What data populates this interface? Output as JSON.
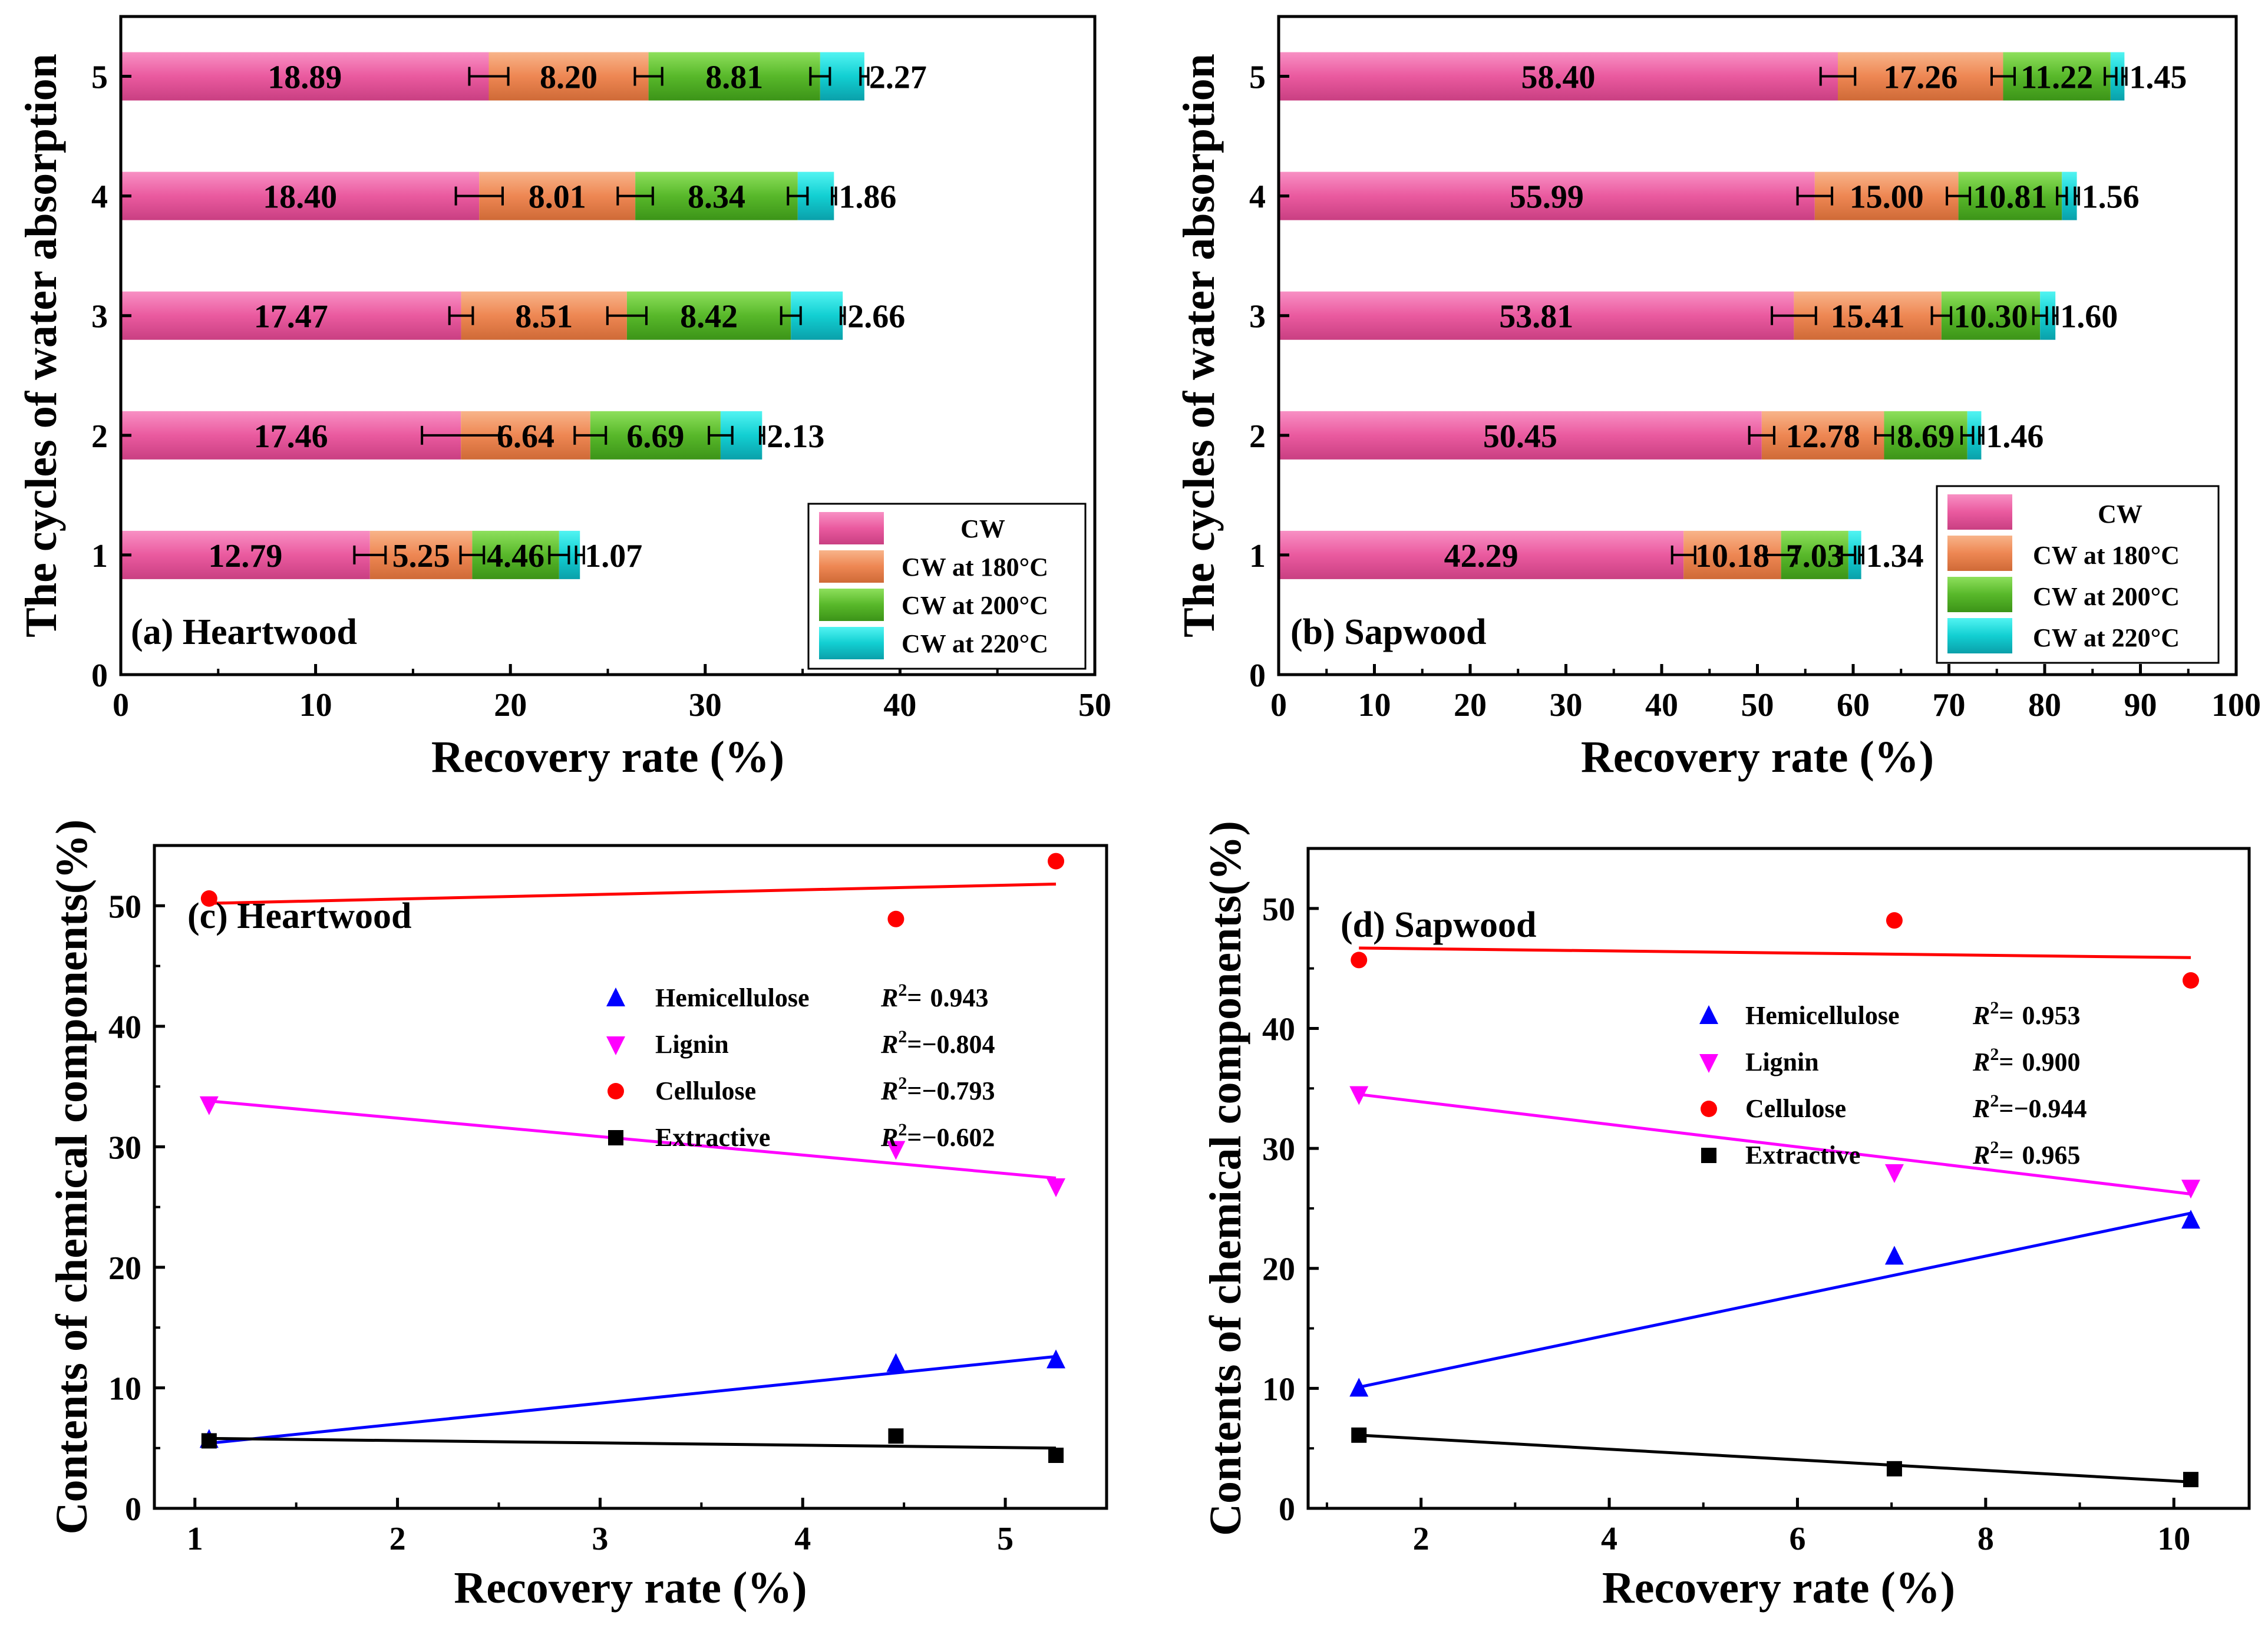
{
  "chart_data": [
    {
      "id": "a",
      "type": "bar",
      "orientation": "horizontal",
      "stacked": true,
      "panel_label": "(a) Heartwood",
      "xlabel": "Recovery rate (%)",
      "ylabel": "The cycles of water absorption",
      "xlim": [
        0,
        50
      ],
      "xticks": [
        "0",
        "10",
        "20",
        "30",
        "40",
        "50"
      ],
      "ylim": [
        0,
        5.5
      ],
      "yticks": [
        "0",
        "1",
        "2",
        "3",
        "4",
        "5"
      ],
      "categories": [
        "1",
        "2",
        "3",
        "4",
        "5"
      ],
      "series": [
        {
          "name": "CW",
          "values": [
            12.79,
            17.46,
            17.47,
            18.4,
            18.89
          ],
          "labels": [
            "12.79",
            "17.46",
            "17.47",
            "18.40",
            "18.89"
          ],
          "errors": [
            0.8,
            2.0,
            0.6,
            1.2,
            1.0
          ]
        },
        {
          "name": "CW at 180°C",
          "values": [
            5.25,
            6.64,
            8.51,
            8.01,
            8.2
          ],
          "labels": [
            "5.25",
            "6.64",
            "8.51",
            "8.01",
            "8.20"
          ],
          "errors": [
            0.6,
            0.8,
            1.0,
            0.9,
            0.7
          ]
        },
        {
          "name": "CW at 200°C",
          "values": [
            4.46,
            6.69,
            8.42,
            8.34,
            8.81
          ],
          "labels": [
            "4.46",
            "6.69",
            "8.42",
            "8.34",
            "8.81"
          ],
          "errors": [
            0.5,
            0.6,
            0.5,
            0.5,
            0.5
          ]
        },
        {
          "name": "CW at 220°C",
          "values": [
            1.07,
            2.13,
            2.66,
            1.86,
            2.27
          ],
          "labels": [
            "1.07",
            "2.13",
            "2.66",
            "1.86",
            "2.27"
          ],
          "errors": [
            0.2,
            0.1,
            0.1,
            0.1,
            0.2
          ]
        }
      ],
      "legend": [
        "CW",
        "CW at 180°C",
        "CW at 200°C",
        "CW at 220°C"
      ]
    },
    {
      "id": "b",
      "type": "bar",
      "orientation": "horizontal",
      "stacked": true,
      "panel_label": "(b) Sapwood",
      "xlabel": "Recovery rate (%)",
      "ylabel": "The cycles of water absorption",
      "xlim": [
        0,
        100
      ],
      "xticks": [
        "0",
        "10",
        "20",
        "30",
        "40",
        "50",
        "60",
        "70",
        "80",
        "90",
        "100"
      ],
      "ylim": [
        0,
        5.5
      ],
      "yticks": [
        "0",
        "1",
        "2",
        "3",
        "4",
        "5"
      ],
      "categories": [
        "1",
        "2",
        "3",
        "4",
        "5"
      ],
      "series": [
        {
          "name": "CW",
          "values": [
            42.29,
            50.45,
            53.81,
            55.99,
            58.4
          ],
          "labels": [
            "42.29",
            "50.45",
            "53.81",
            "55.99",
            "58.40"
          ],
          "errors": [
            1.2,
            1.3,
            2.3,
            1.8,
            1.8
          ]
        },
        {
          "name": "CW at 180°C",
          "values": [
            10.18,
            12.78,
            15.41,
            15.0,
            17.26
          ],
          "labels": [
            "10.18",
            "12.78",
            "15.41",
            "15.00",
            "17.26"
          ],
          "errors": [
            1.6,
            0.9,
            1.0,
            1.2,
            1.2
          ]
        },
        {
          "name": "CW at 200°C",
          "values": [
            7.03,
            8.69,
            10.3,
            10.81,
            11.22
          ],
          "labels": [
            "7.03",
            "8.69",
            "10.30",
            "10.81",
            "11.22"
          ],
          "errors": [
            0.7,
            0.6,
            0.7,
            0.5,
            0.6
          ]
        },
        {
          "name": "CW at 220°C",
          "values": [
            1.34,
            1.46,
            1.6,
            1.56,
            1.45
          ],
          "labels": [
            "1.34",
            "1.46",
            "1.60",
            "1.56",
            "1.45"
          ],
          "errors": [
            0.2,
            0.2,
            0.2,
            0.2,
            0.2
          ]
        }
      ],
      "legend": [
        "CW",
        "CW at 180°C",
        "CW at 200°C",
        "CW at 220°C"
      ]
    },
    {
      "id": "c",
      "type": "scatter",
      "panel_label": "(c) Heartwood",
      "xlabel": "Recovery rate (%)",
      "ylabel": "Contents of chemical components(%)",
      "xlim": [
        0.8,
        5.5
      ],
      "xticks": [
        1,
        2,
        3,
        4,
        5
      ],
      "ylim": [
        0,
        55
      ],
      "yticks": [
        0,
        10,
        20,
        30,
        40,
        50
      ],
      "series": [
        {
          "name": "Hemicellulose",
          "marker": "triangle-up",
          "color": "#0000ff",
          "x": [
            1.07,
            4.46,
            5.25
          ],
          "y": [
            5.7,
            12.0,
            12.3
          ],
          "fit": [
            [
              1.07,
              5.4
            ],
            [
              5.25,
              12.6
            ]
          ],
          "r2_label": "R",
          "r2_value": "0.943"
        },
        {
          "name": "Lignin",
          "marker": "triangle-down",
          "color": "#ff00ff",
          "x": [
            1.07,
            4.46,
            5.25
          ],
          "y": [
            33.5,
            29.8,
            26.7
          ],
          "fit": [
            [
              1.07,
              33.8
            ],
            [
              5.25,
              27.4
            ]
          ],
          "r2_label": "R",
          "r2_value": "−0.804"
        },
        {
          "name": "Cellulose",
          "marker": "circle",
          "color": "#ff0000",
          "x": [
            1.07,
            4.46,
            5.25
          ],
          "y": [
            50.6,
            48.9,
            53.7
          ],
          "fit": [
            [
              1.07,
              50.2
            ],
            [
              5.25,
              51.8
            ]
          ],
          "r2_label": "R",
          "r2_value": "−0.793"
        },
        {
          "name": "Extractive",
          "marker": "square",
          "color": "#000000",
          "x": [
            1.07,
            4.46,
            5.25
          ],
          "y": [
            5.6,
            6.0,
            4.4
          ],
          "fit": [
            [
              1.07,
              5.8
            ],
            [
              5.25,
              5.0
            ]
          ],
          "r2_label": "R",
          "r2_value": "−0.602"
        }
      ]
    },
    {
      "id": "d",
      "type": "scatter",
      "panel_label": "(d) Sapwood",
      "xlabel": "Recovery rate (%)",
      "ylabel": "Contents of chemical components(%)",
      "xlim": [
        0.8,
        10.8
      ],
      "xticks": [
        2,
        4,
        6,
        8,
        10
      ],
      "ylim": [
        0,
        55
      ],
      "yticks": [
        0,
        10,
        20,
        30,
        40,
        50
      ],
      "series": [
        {
          "name": "Hemicellulose",
          "marker": "triangle-up",
          "color": "#0000ff",
          "x": [
            1.34,
            7.03,
            10.18
          ],
          "y": [
            10.0,
            21.0,
            24.0
          ],
          "fit": [
            [
              1.34,
              10.1
            ],
            [
              10.18,
              24.6
            ]
          ],
          "r2_label": "R",
          "r2_value": "0.953"
        },
        {
          "name": "Lignin",
          "marker": "triangle-down",
          "color": "#ff00ff",
          "x": [
            1.34,
            7.03,
            10.18
          ],
          "y": [
            34.5,
            28.0,
            26.7
          ],
          "fit": [
            [
              1.34,
              34.5
            ],
            [
              10.18,
              26.2
            ]
          ],
          "r2_label": "R",
          "r2_value": "0.900"
        },
        {
          "name": "Cellulose",
          "marker": "circle",
          "color": "#ff0000",
          "x": [
            1.34,
            7.03,
            10.18
          ],
          "y": [
            45.7,
            49.0,
            44.0
          ],
          "fit": [
            [
              1.34,
              46.7
            ],
            [
              10.18,
              45.9
            ]
          ],
          "r2_label": "R",
          "r2_value": "−0.944"
        },
        {
          "name": "Extractive",
          "marker": "square",
          "color": "#000000",
          "x": [
            1.34,
            7.03,
            10.18
          ],
          "y": [
            6.1,
            3.3,
            2.4
          ],
          "fit": [
            [
              1.34,
              6.1
            ],
            [
              10.18,
              2.2
            ]
          ],
          "r2_label": "R",
          "r2_value": "0.965"
        }
      ]
    }
  ],
  "colors": {
    "cw": "#f0589e",
    "cw180": "#ef8a55",
    "cw200": "#5dbb2c",
    "cw220": "#12cfd2",
    "hemicellulose": "#0000ff",
    "lignin": "#ff00ff",
    "cellulose": "#ff0000",
    "extractive": "#000000"
  },
  "r2_superscript": "2",
  "r2_equals": "="
}
